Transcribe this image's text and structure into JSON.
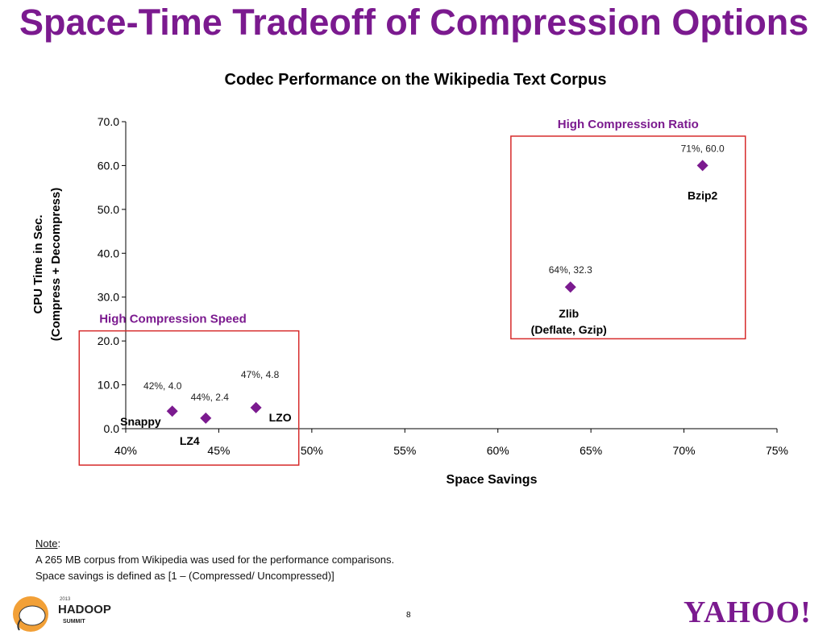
{
  "slide": {
    "title": "Space-Time Tradeoff of Compression Options",
    "page_number": "8",
    "note_heading": "Note",
    "note_lines": [
      "A 265 MB corpus from Wikipedia was used for the performance comparisons.",
      "Space savings is defined as [1 – (Compressed/ Uncompressed)]"
    ],
    "brand_logo_text": "YAHOO!",
    "event_logo_text": "HADOOP",
    "event_logo_subtext": "SUMMIT",
    "event_logo_year": "2013"
  },
  "colors": {
    "accent": "#7b1a8f",
    "box": "#d62b2b",
    "axis": "#000000"
  },
  "chart_data": {
    "type": "scatter",
    "title": "Codec Performance on the Wikipedia Text Corpus",
    "xlabel": "Space Savings",
    "ylabel": [
      "CPU Time in Sec.",
      "(Compress + Decompress)"
    ],
    "xlim": [
      40,
      75
    ],
    "ylim": [
      0,
      70
    ],
    "x_ticks": [
      "40%",
      "45%",
      "50%",
      "55%",
      "60%",
      "65%",
      "70%",
      "75%"
    ],
    "y_ticks": [
      "0.0",
      "10.0",
      "20.0",
      "30.0",
      "40.0",
      "50.0",
      "60.0",
      "70.0"
    ],
    "grid": false,
    "points": [
      {
        "name": "Snappy",
        "x": 42.5,
        "y": 4.0,
        "value_label": "42%, 4.0"
      },
      {
        "name": "LZ4",
        "x": 44.3,
        "y": 2.4,
        "value_label": "44%, 2.4"
      },
      {
        "name": "LZO",
        "x": 47.0,
        "y": 4.8,
        "value_label": "47%, 4.8"
      },
      {
        "name": "Zlib",
        "subname": "(Deflate, Gzip)",
        "x": 63.9,
        "y": 32.3,
        "value_label": "64%, 32.3"
      },
      {
        "name": "Bzip2",
        "x": 71.0,
        "y": 60.0,
        "value_label": "71%, 60.0"
      }
    ],
    "regions": [
      {
        "label": "High Compression Speed",
        "x_range": [
          37.5,
          49.3
        ],
        "y_range": [
          -8.3,
          22.3
        ]
      },
      {
        "label": "High Compression Ratio",
        "x_range": [
          60.7,
          73.3
        ],
        "y_range": [
          20.5,
          66.7
        ]
      }
    ]
  }
}
